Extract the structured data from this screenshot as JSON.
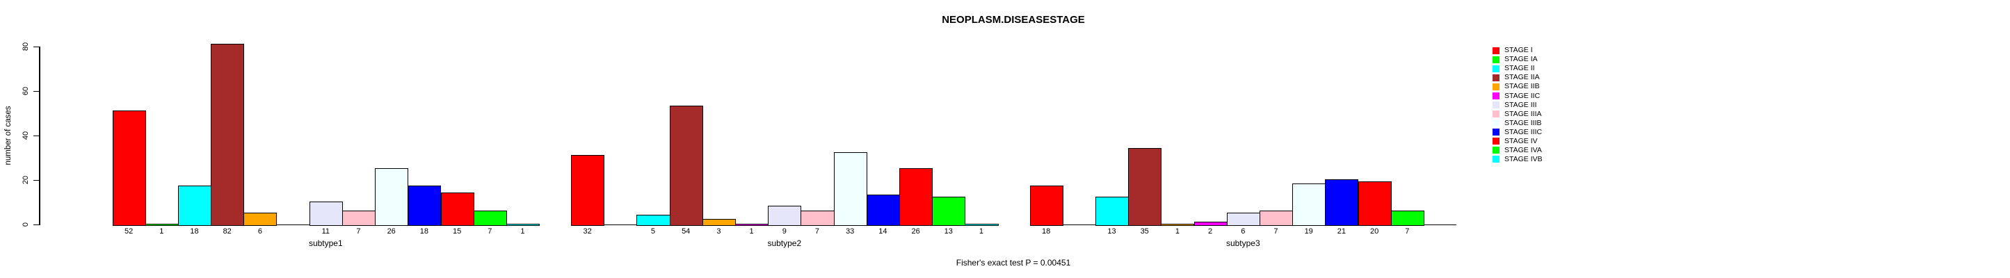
{
  "chart_data": {
    "type": "bar",
    "title": "NEOPLASM.DISEASESTAGE",
    "ylabel": "number of cases",
    "xlabel": "",
    "annotation": "Fisher's exact test P = 0.00451",
    "ylim": [
      0,
      80
    ],
    "yticks": [
      0,
      20,
      40,
      60,
      80
    ],
    "grid": false,
    "legend_position": "right",
    "zero_values_unlabeled": true,
    "categories": [
      "STAGE I",
      "STAGE IA",
      "STAGE II",
      "STAGE IIA",
      "STAGE IIB",
      "STAGE IIC",
      "STAGE III",
      "STAGE IIIA",
      "STAGE IIIB",
      "STAGE IIIC",
      "STAGE IV",
      "STAGE IVA",
      "STAGE IVB"
    ],
    "stage_colors": [
      "#FF0000",
      "#00FF00",
      "#00FFFF",
      "#A52A2A",
      "#FFA500",
      "#FF00FF",
      "#E6E6FA",
      "#FFC0CB",
      "#F0FFFF",
      "#0000FF",
      "#FF0000",
      "#00FF00",
      "#00FFFF"
    ],
    "series": [
      {
        "name": "subtype1",
        "values": [
          52,
          1,
          18,
          82,
          6,
          0,
          11,
          7,
          26,
          18,
          15,
          7,
          1
        ]
      },
      {
        "name": "subtype2",
        "values": [
          32,
          0,
          5,
          54,
          3,
          1,
          9,
          7,
          33,
          14,
          26,
          13,
          1
        ]
      },
      {
        "name": "subtype3",
        "values": [
          18,
          0,
          13,
          35,
          1,
          2,
          6,
          7,
          19,
          21,
          20,
          7,
          0
        ]
      }
    ]
  }
}
